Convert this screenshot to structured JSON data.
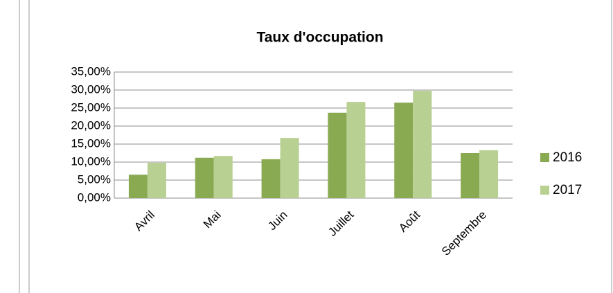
{
  "chart_data": {
    "type": "bar",
    "title": "Taux d'occupation",
    "categories": [
      "Avril",
      "Mai",
      "Juin",
      "Juillet",
      "Août",
      "Septembre"
    ],
    "series": [
      {
        "name": "2016",
        "color": "#8aaa52",
        "values": [
          6.5,
          11.2,
          10.8,
          23.7,
          26.5,
          12.5
        ]
      },
      {
        "name": "2017",
        "color": "#b9d093",
        "values": [
          9.8,
          11.7,
          16.7,
          26.7,
          29.8,
          13.3
        ]
      }
    ],
    "ylim": [
      0,
      35
    ],
    "yticks": [
      {
        "value": 0,
        "label": "0,00%"
      },
      {
        "value": 5,
        "label": "5,00%"
      },
      {
        "value": 10,
        "label": "10,00%"
      },
      {
        "value": 15,
        "label": "15,00%"
      },
      {
        "value": 20,
        "label": "20,00%"
      },
      {
        "value": 25,
        "label": "25,00%"
      },
      {
        "value": 30,
        "label": "30,00%"
      },
      {
        "value": 35,
        "label": "35,00%"
      }
    ],
    "grid": true,
    "legend": "right"
  }
}
